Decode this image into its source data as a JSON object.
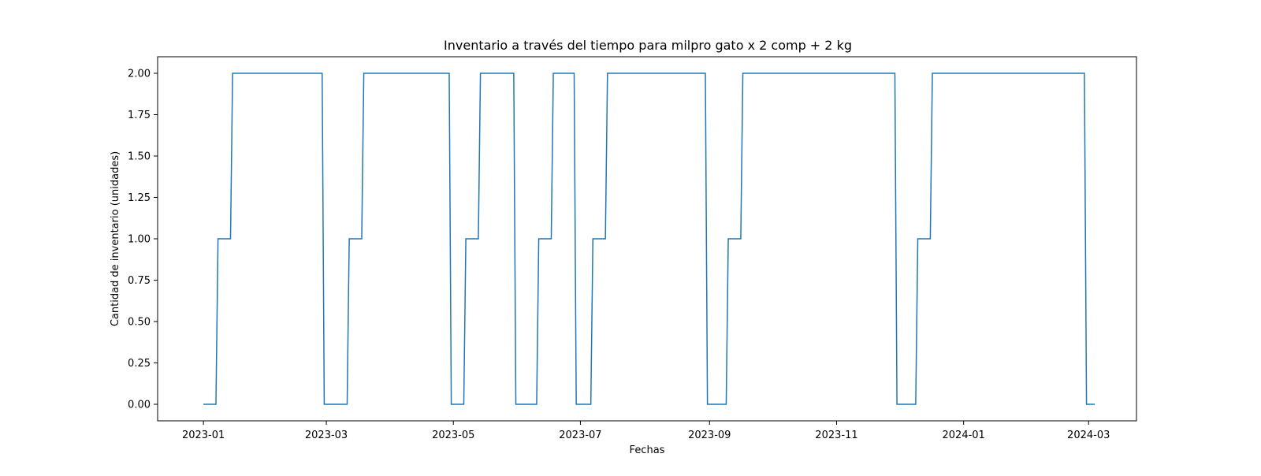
{
  "chart_data": {
    "type": "line",
    "title": "Inventario a través del tiempo para milpro gato x 2 comp + 2 kg",
    "xlabel": "Fechas",
    "ylabel": "Cantidad de inventario (unidades)",
    "xlim": [
      "2022-12-10",
      "2024-03-24"
    ],
    "ylim": [
      -0.1,
      2.1
    ],
    "x_ticks": [
      "2023-01",
      "2023-03",
      "2023-05",
      "2023-07",
      "2023-09",
      "2023-11",
      "2024-01",
      "2024-03"
    ],
    "y_ticks": [
      "0.00",
      "0.25",
      "0.50",
      "0.75",
      "1.00",
      "1.25",
      "1.50",
      "1.75",
      "2.00"
    ],
    "grid": false,
    "line_color": "#1f77b4",
    "series": [
      {
        "x": [
          "2023-01-01",
          "2023-01-07",
          "2023-01-08",
          "2023-01-14",
          "2023-01-15",
          "2023-02-27",
          "2023-02-28",
          "2023-03-11",
          "2023-03-12",
          "2023-03-18",
          "2023-03-19",
          "2023-04-29",
          "2023-04-30",
          "2023-05-06",
          "2023-05-07",
          "2023-05-13",
          "2023-05-14",
          "2023-05-30",
          "2023-05-31",
          "2023-06-10",
          "2023-06-11",
          "2023-06-17",
          "2023-06-18",
          "2023-06-28",
          "2023-06-29",
          "2023-07-06",
          "2023-07-07",
          "2023-07-13",
          "2023-07-14",
          "2023-08-30",
          "2023-08-31",
          "2023-09-09",
          "2023-09-10",
          "2023-09-16",
          "2023-09-17",
          "2023-11-29",
          "2023-11-30",
          "2023-12-09",
          "2023-12-10",
          "2023-12-16",
          "2023-12-17",
          "2024-02-28",
          "2024-02-29",
          "2024-03-04"
        ],
        "values": [
          0,
          0,
          1,
          1,
          2,
          2,
          0,
          0,
          1,
          1,
          2,
          2,
          0,
          0,
          1,
          1,
          2,
          2,
          0,
          0,
          1,
          1,
          2,
          2,
          0,
          0,
          1,
          1,
          2,
          2,
          0,
          0,
          1,
          1,
          2,
          2,
          0,
          0,
          1,
          1,
          2,
          2,
          0,
          0
        ]
      }
    ]
  }
}
